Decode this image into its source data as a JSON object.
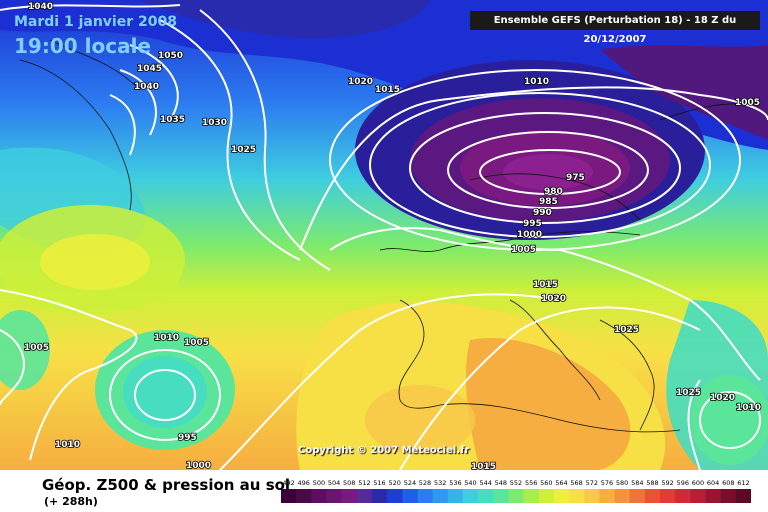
{
  "header": {
    "date": "Mardi 1 janvier 2008",
    "time": "19:00 locale",
    "run": "Ensemble GEFS (Perturbation 18)  -  18 Z du 20/12/2007"
  },
  "map": {
    "copyright": "Copyright © 2007 Meteociel.fr",
    "isobar_labels": [
      "1040",
      "1050",
      "1045",
      "1040",
      "1035",
      "1030",
      "1025",
      "1020",
      "1015",
      "1010",
      "1005",
      "975",
      "980",
      "985",
      "990",
      "995",
      "1000",
      "1005",
      "1015",
      "1020",
      "1025",
      "1005",
      "1010",
      "1005",
      "995",
      "1000",
      "1010",
      "1015",
      "1025",
      "1020",
      "1010"
    ]
  },
  "footer": {
    "title": "Géop. Z500 & pression au sol",
    "subtitle": "(+ 288h)"
  },
  "legend": {
    "ticks": [
      "492",
      "496",
      "500",
      "504",
      "508",
      "512",
      "516",
      "520",
      "524",
      "528",
      "532",
      "536",
      "540",
      "544",
      "548",
      "552",
      "556",
      "560",
      "564",
      "568",
      "572",
      "576",
      "580",
      "584",
      "588",
      "592",
      "596",
      "600",
      "604",
      "608",
      "612"
    ],
    "colors": [
      "#3a003a",
      "#4a0a4a",
      "#5c0f5c",
      "#6b1570",
      "#7a1a80",
      "#552a9a",
      "#2c2aa8",
      "#1f3fd0",
      "#1e5ee8",
      "#2a7cf0",
      "#2f98f0",
      "#37b3e8",
      "#3fcde0",
      "#46ddc0",
      "#5ae59a",
      "#7cea6e",
      "#a6ee4c",
      "#cdf03a",
      "#ecf03c",
      "#f7e046",
      "#f8c84a",
      "#f6ae40",
      "#f4943a",
      "#f0743a",
      "#ea5236",
      "#e23a34",
      "#d02a36",
      "#b81e34",
      "#9a1630",
      "#7a0e2a",
      "#5a0a22"
    ]
  }
}
